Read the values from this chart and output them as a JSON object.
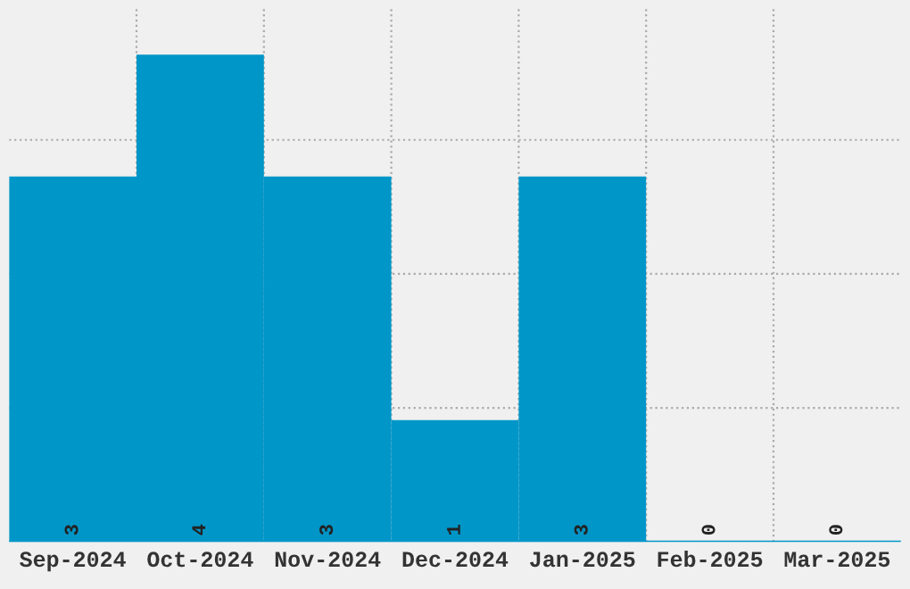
{
  "chart_data": {
    "type": "bar",
    "categories": [
      "Sep-2024",
      "Oct-2024",
      "Nov-2024",
      "Dec-2024",
      "Jan-2025",
      "Feb-2025",
      "Mar-2025"
    ],
    "values": [
      3,
      4,
      3,
      1,
      3,
      0,
      0
    ],
    "color": "#0096c8",
    "data_labels": true,
    "ylim": [
      0,
      4.4
    ],
    "yticks": [
      {
        "value": 1.1,
        "label": null
      },
      {
        "value": 2.2,
        "label": null
      },
      {
        "value": 3.3,
        "label": null
      }
    ],
    "tick_labels": "x",
    "grid": true
  }
}
